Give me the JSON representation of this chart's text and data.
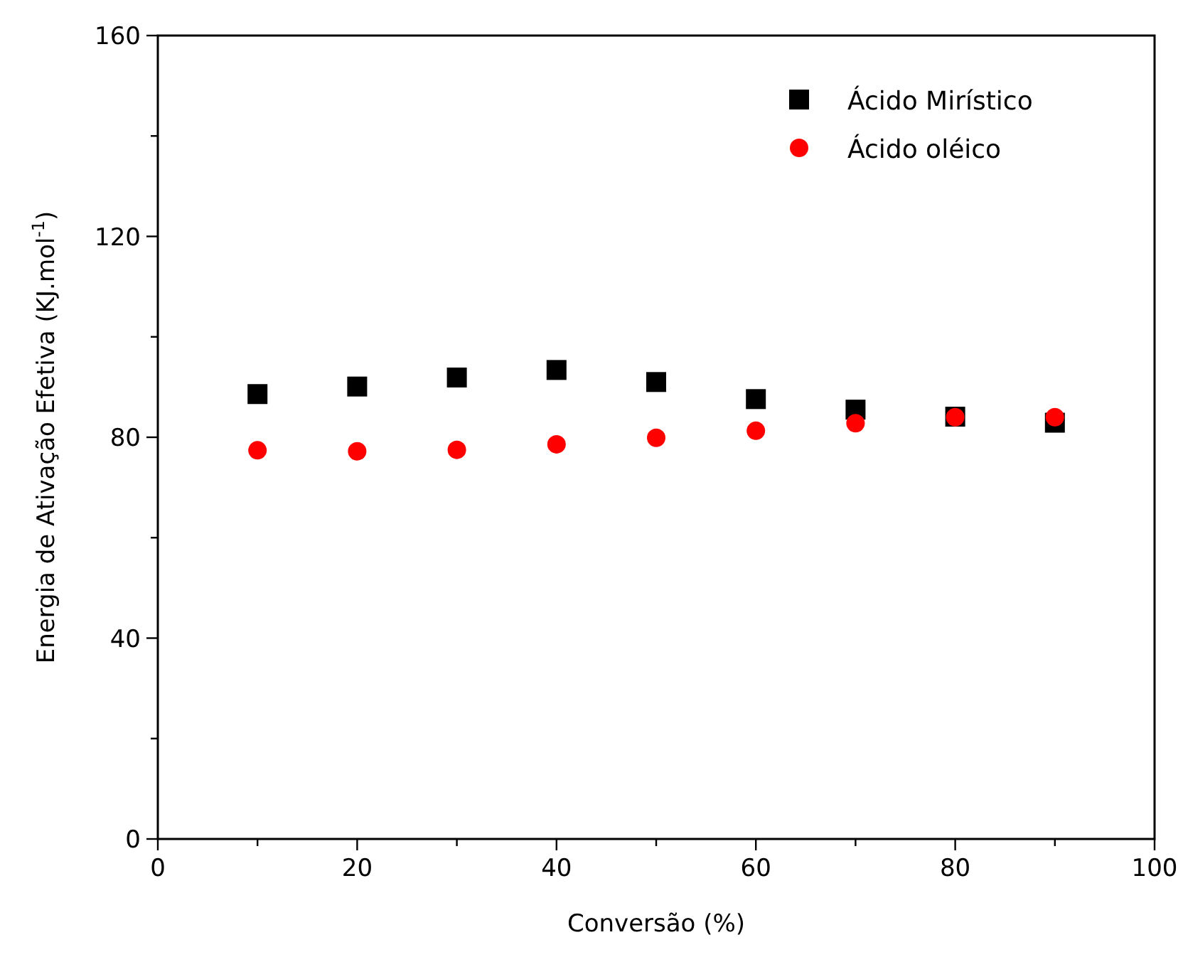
{
  "chart_data": {
    "type": "scatter",
    "xlabel": "Conversão (%)",
    "ylabel": "Energia de Ativação Efetiva (KJ.mol$^{-1}$)",
    "x": [
      10,
      20,
      30,
      40,
      50,
      60,
      70,
      80,
      90
    ],
    "series": [
      {
        "name": "Ácido Mirístico",
        "color": "#000000",
        "marker": "square",
        "values": [
          88.6,
          90.1,
          91.9,
          93.4,
          91.0,
          87.6,
          85.5,
          84.1,
          82.9
        ]
      },
      {
        "name": "Ácido oléico",
        "color": "#ff0000",
        "marker": "circle",
        "values": [
          77.4,
          77.2,
          77.5,
          78.6,
          79.9,
          81.3,
          82.8,
          84.0,
          84.0
        ]
      }
    ],
    "xlim": [
      0,
      100
    ],
    "xticks": [
      0,
      {
        "value": 10,
        "label": null
      },
      20,
      {
        "value": 30,
        "label": null
      },
      40,
      {
        "value": 50,
        "label": null
      },
      60,
      {
        "value": 70,
        "label": null
      },
      80,
      {
        "value": 90,
        "label": null
      },
      100
    ],
    "ylim": [
      0,
      160
    ],
    "yticks": [
      0,
      {
        "value": 20,
        "label": null
      },
      40,
      {
        "value": 60,
        "label": null
      },
      80,
      {
        "value": 100,
        "label": null
      },
      120,
      {
        "value": 140,
        "label": null
      },
      160
    ],
    "grid": false,
    "legend": "top right"
  }
}
